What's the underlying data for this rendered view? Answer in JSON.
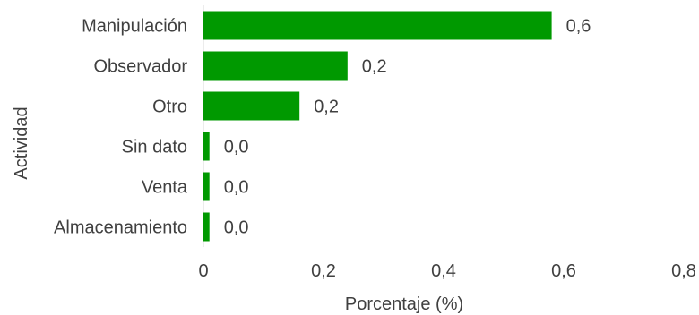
{
  "chart_data": {
    "type": "bar",
    "orientation": "horizontal",
    "categories": [
      "Manipulación",
      "Observador",
      "Otro",
      "Sin dato",
      "Venta",
      "Almacenamiento"
    ],
    "values": [
      0.58,
      0.24,
      0.16,
      0.01,
      0.01,
      0.01
    ],
    "data_labels": [
      "0,6",
      "0,2",
      "0,2",
      "0,0",
      "0,0",
      "0,0"
    ],
    "xlabel": "Porcentaje (%)",
    "ylabel": "Actividad",
    "xlim": [
      0,
      0.8
    ],
    "x_ticks": [
      0,
      0.2,
      0.4,
      0.6,
      0.8
    ],
    "x_tick_labels": [
      "0",
      "0,2",
      "0,4",
      "0,6",
      "0,8"
    ],
    "grid": false,
    "legend": "none",
    "bar_color": "#009900"
  }
}
